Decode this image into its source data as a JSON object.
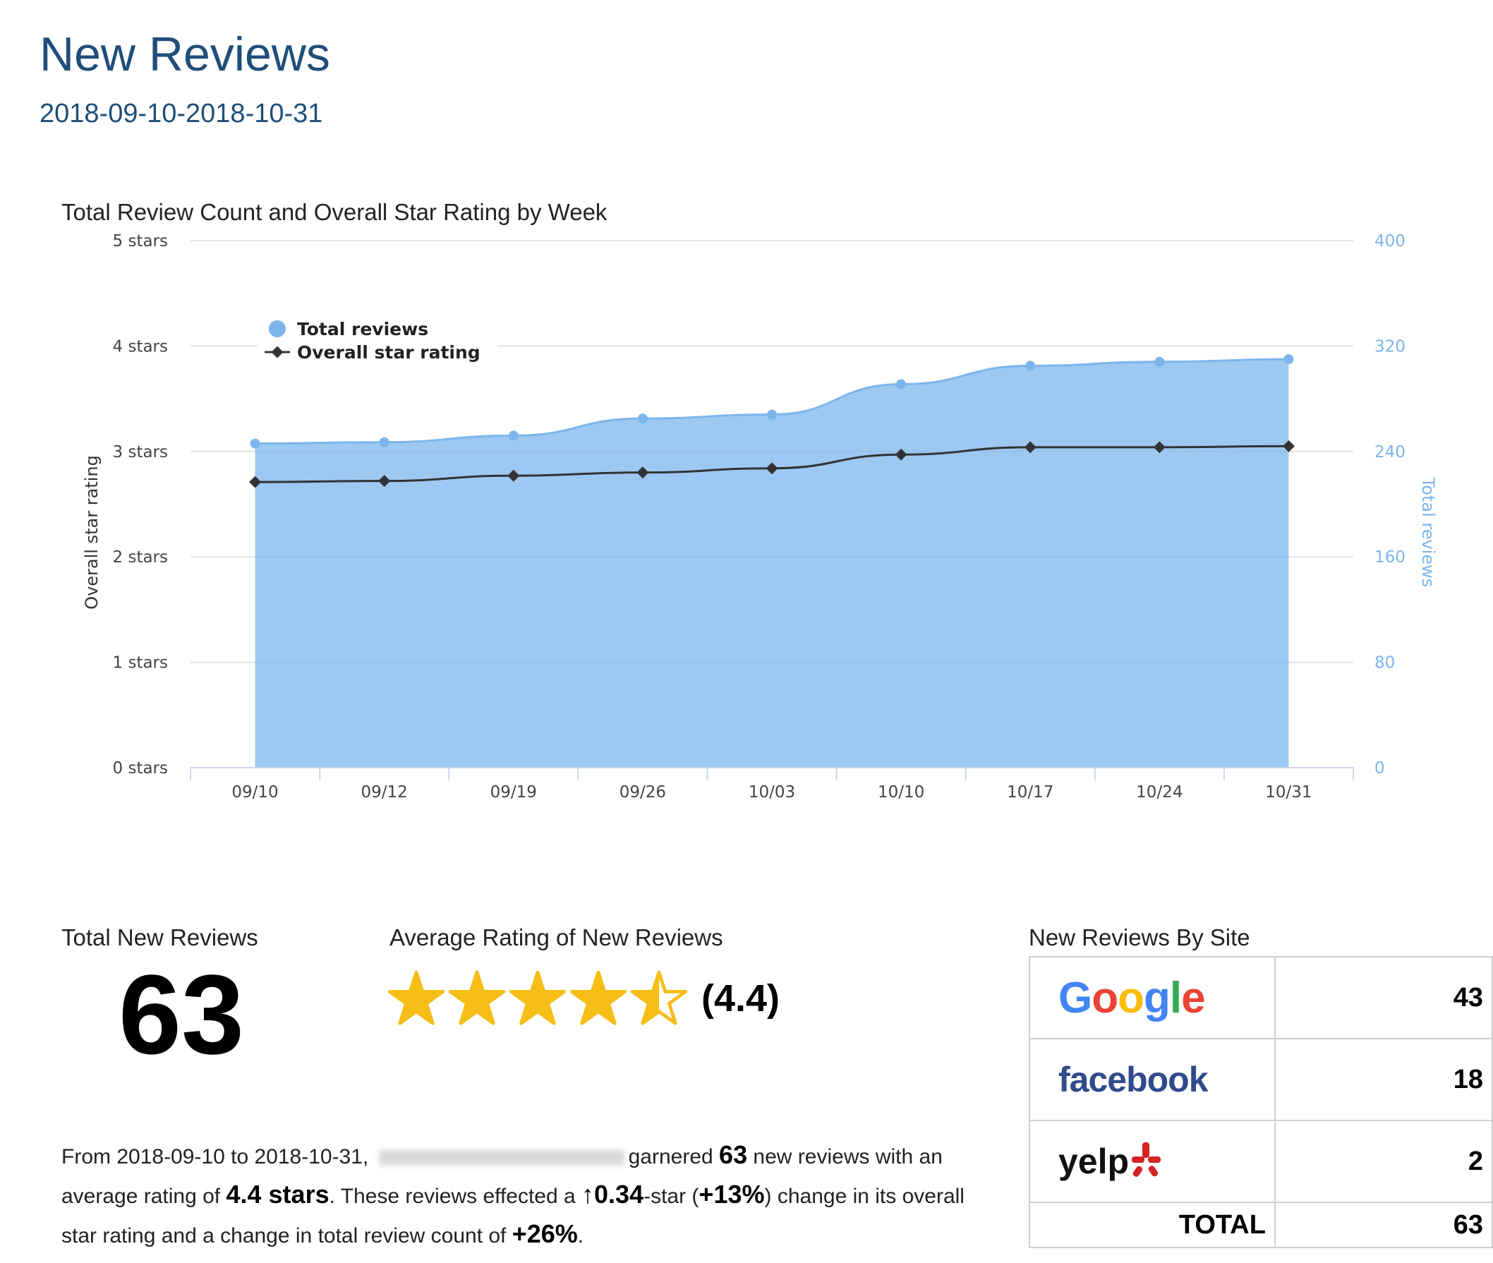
{
  "header": {
    "title": "New Reviews",
    "date_range": "2018-09-10-2018-10-31"
  },
  "chart_data": {
    "type": "area",
    "title": "Total Review Count and Overall Star Rating by Week",
    "categories": [
      "09/10",
      "09/12",
      "09/19",
      "09/26",
      "10/03",
      "10/10",
      "10/17",
      "10/24",
      "10/31"
    ],
    "ylabel_left": "Overall star rating",
    "ylabel_right": "Total reviews",
    "ylim_left": [
      0,
      5
    ],
    "ylim_right": [
      0,
      400
    ],
    "left_ticks": [
      "0 stars",
      "1 stars",
      "2 stars",
      "3 stars",
      "4 stars",
      "5 stars"
    ],
    "right_ticks": [
      "0",
      "80",
      "160",
      "240",
      "320",
      "400"
    ],
    "legend_position": "top-left",
    "grid": true,
    "series": [
      {
        "name": "Total reviews",
        "kind": "area",
        "axis": "right",
        "color": "#7cb5ec",
        "values": [
          246,
          247,
          252,
          265,
          268,
          291,
          305,
          308,
          310
        ]
      },
      {
        "name": "Overall star rating",
        "kind": "line",
        "axis": "left",
        "color": "#333333",
        "values": [
          2.71,
          2.72,
          2.77,
          2.8,
          2.84,
          2.97,
          3.04,
          3.04,
          3.05
        ]
      }
    ]
  },
  "total_new": {
    "title": "Total New Reviews",
    "value": "63"
  },
  "average": {
    "title": "Average Rating of New Reviews",
    "stars": 4.4,
    "value_text": "(4.4)"
  },
  "summary": {
    "p1": "From 2018-09-10 to 2018-10-31, ",
    "p2": "garnered ",
    "count": "63",
    "p3": " new reviews with an average rating of ",
    "rating": "4.4 stars",
    "p4": ". These reviews effected a ",
    "star_change": "↑0.34",
    "p5": "-star (",
    "pct_change": "+13%",
    "p6": ") change in its overall star rating and a change in total review count of ",
    "count_change": "+26%",
    "p7": "."
  },
  "by_site": {
    "title": "New Reviews By Site",
    "rows": [
      {
        "site": "Google",
        "count": "43"
      },
      {
        "site": "facebook",
        "count": "18"
      },
      {
        "site": "yelp",
        "count": "2"
      }
    ],
    "total_label": "TOTAL",
    "total": "63"
  }
}
